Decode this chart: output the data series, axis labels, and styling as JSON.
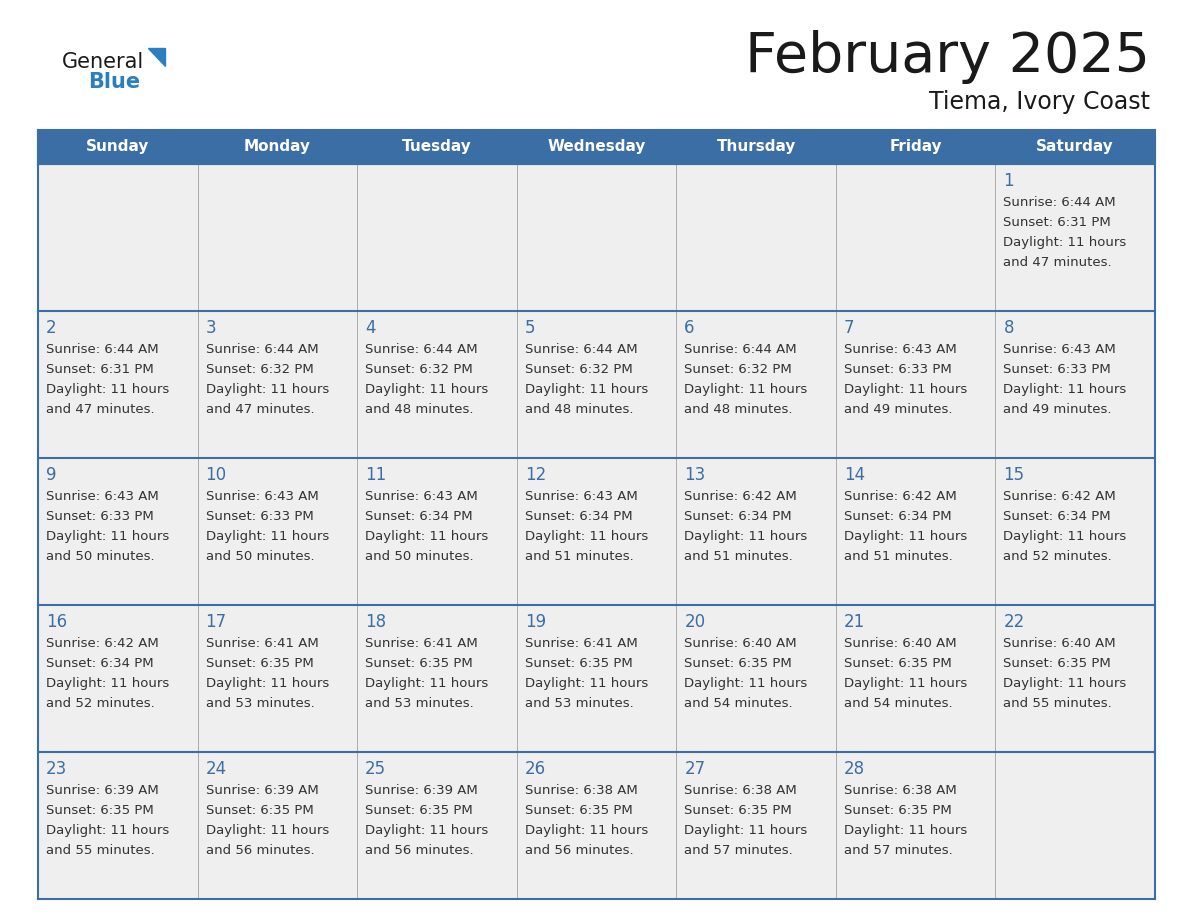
{
  "title": "February 2025",
  "subtitle": "Tiema, Ivory Coast",
  "days_of_week": [
    "Sunday",
    "Monday",
    "Tuesday",
    "Wednesday",
    "Thursday",
    "Friday",
    "Saturday"
  ],
  "header_bg": "#3a6ea5",
  "header_text_color": "#ffffff",
  "cell_bg": "#efefef",
  "border_color": "#3a6ea5",
  "day_number_color": "#3a6ea5",
  "cell_text_color": "#333333",
  "calendar_data": [
    [
      null,
      null,
      null,
      null,
      null,
      null,
      {
        "day": 1,
        "sunrise": "6:44 AM",
        "sunset": "6:31 PM",
        "daylight_h": "11 hours",
        "daylight_m": "47 minutes."
      }
    ],
    [
      {
        "day": 2,
        "sunrise": "6:44 AM",
        "sunset": "6:31 PM",
        "daylight_h": "11 hours",
        "daylight_m": "47 minutes."
      },
      {
        "day": 3,
        "sunrise": "6:44 AM",
        "sunset": "6:32 PM",
        "daylight_h": "11 hours",
        "daylight_m": "47 minutes."
      },
      {
        "day": 4,
        "sunrise": "6:44 AM",
        "sunset": "6:32 PM",
        "daylight_h": "11 hours",
        "daylight_m": "48 minutes."
      },
      {
        "day": 5,
        "sunrise": "6:44 AM",
        "sunset": "6:32 PM",
        "daylight_h": "11 hours",
        "daylight_m": "48 minutes."
      },
      {
        "day": 6,
        "sunrise": "6:44 AM",
        "sunset": "6:32 PM",
        "daylight_h": "11 hours",
        "daylight_m": "48 minutes."
      },
      {
        "day": 7,
        "sunrise": "6:43 AM",
        "sunset": "6:33 PM",
        "daylight_h": "11 hours",
        "daylight_m": "49 minutes."
      },
      {
        "day": 8,
        "sunrise": "6:43 AM",
        "sunset": "6:33 PM",
        "daylight_h": "11 hours",
        "daylight_m": "49 minutes."
      }
    ],
    [
      {
        "day": 9,
        "sunrise": "6:43 AM",
        "sunset": "6:33 PM",
        "daylight_h": "11 hours",
        "daylight_m": "50 minutes."
      },
      {
        "day": 10,
        "sunrise": "6:43 AM",
        "sunset": "6:33 PM",
        "daylight_h": "11 hours",
        "daylight_m": "50 minutes."
      },
      {
        "day": 11,
        "sunrise": "6:43 AM",
        "sunset": "6:34 PM",
        "daylight_h": "11 hours",
        "daylight_m": "50 minutes."
      },
      {
        "day": 12,
        "sunrise": "6:43 AM",
        "sunset": "6:34 PM",
        "daylight_h": "11 hours",
        "daylight_m": "51 minutes."
      },
      {
        "day": 13,
        "sunrise": "6:42 AM",
        "sunset": "6:34 PM",
        "daylight_h": "11 hours",
        "daylight_m": "51 minutes."
      },
      {
        "day": 14,
        "sunrise": "6:42 AM",
        "sunset": "6:34 PM",
        "daylight_h": "11 hours",
        "daylight_m": "51 minutes."
      },
      {
        "day": 15,
        "sunrise": "6:42 AM",
        "sunset": "6:34 PM",
        "daylight_h": "11 hours",
        "daylight_m": "52 minutes."
      }
    ],
    [
      {
        "day": 16,
        "sunrise": "6:42 AM",
        "sunset": "6:34 PM",
        "daylight_h": "11 hours",
        "daylight_m": "52 minutes."
      },
      {
        "day": 17,
        "sunrise": "6:41 AM",
        "sunset": "6:35 PM",
        "daylight_h": "11 hours",
        "daylight_m": "53 minutes."
      },
      {
        "day": 18,
        "sunrise": "6:41 AM",
        "sunset": "6:35 PM",
        "daylight_h": "11 hours",
        "daylight_m": "53 minutes."
      },
      {
        "day": 19,
        "sunrise": "6:41 AM",
        "sunset": "6:35 PM",
        "daylight_h": "11 hours",
        "daylight_m": "53 minutes."
      },
      {
        "day": 20,
        "sunrise": "6:40 AM",
        "sunset": "6:35 PM",
        "daylight_h": "11 hours",
        "daylight_m": "54 minutes."
      },
      {
        "day": 21,
        "sunrise": "6:40 AM",
        "sunset": "6:35 PM",
        "daylight_h": "11 hours",
        "daylight_m": "54 minutes."
      },
      {
        "day": 22,
        "sunrise": "6:40 AM",
        "sunset": "6:35 PM",
        "daylight_h": "11 hours",
        "daylight_m": "55 minutes."
      }
    ],
    [
      {
        "day": 23,
        "sunrise": "6:39 AM",
        "sunset": "6:35 PM",
        "daylight_h": "11 hours",
        "daylight_m": "55 minutes."
      },
      {
        "day": 24,
        "sunrise": "6:39 AM",
        "sunset": "6:35 PM",
        "daylight_h": "11 hours",
        "daylight_m": "56 minutes."
      },
      {
        "day": 25,
        "sunrise": "6:39 AM",
        "sunset": "6:35 PM",
        "daylight_h": "11 hours",
        "daylight_m": "56 minutes."
      },
      {
        "day": 26,
        "sunrise": "6:38 AM",
        "sunset": "6:35 PM",
        "daylight_h": "11 hours",
        "daylight_m": "56 minutes."
      },
      {
        "day": 27,
        "sunrise": "6:38 AM",
        "sunset": "6:35 PM",
        "daylight_h": "11 hours",
        "daylight_m": "57 minutes."
      },
      {
        "day": 28,
        "sunrise": "6:38 AM",
        "sunset": "6:35 PM",
        "daylight_h": "11 hours",
        "daylight_m": "57 minutes."
      },
      null
    ]
  ]
}
